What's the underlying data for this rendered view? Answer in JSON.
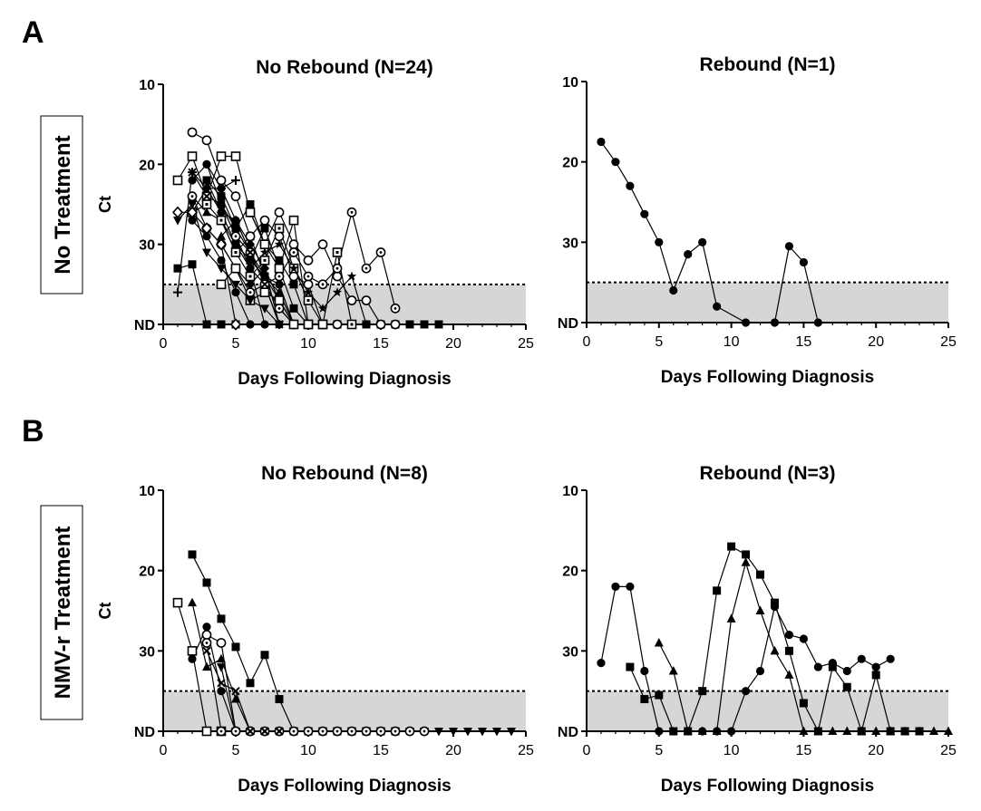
{
  "figure": {
    "panel_labels": [
      "A",
      "B"
    ],
    "row_labels": [
      "No Treatment",
      "NMV-r Treatment"
    ],
    "detection_threshold_ct": 35
  },
  "chart_data": [
    {
      "type": "line",
      "panel": "A-left",
      "title": "No Rebound (N=24)",
      "xlabel": "Days Following Diagnosis",
      "ylabel": "Ct",
      "xlim": [
        0,
        25
      ],
      "ylim_inverted": [
        10,
        40
      ],
      "xticks": [
        "0",
        "5",
        "10",
        "15",
        "20",
        "25"
      ],
      "yticks": [
        "10",
        "20",
        "30",
        "ND"
      ],
      "series": [
        {
          "marker": "filled-circle",
          "x": [
            2,
            3,
            4,
            5,
            6,
            7,
            8
          ],
          "y": [
            22,
            20,
            25,
            29,
            33,
            35,
            40
          ]
        },
        {
          "marker": "filled-circle",
          "x": [
            3,
            4,
            5,
            6,
            7
          ],
          "y": [
            22,
            26,
            30,
            33,
            40
          ]
        },
        {
          "marker": "filled-circle",
          "x": [
            3,
            4,
            5,
            6,
            7,
            8,
            9,
            10
          ],
          "y": [
            20,
            23,
            27,
            31,
            34,
            35,
            40,
            40
          ]
        },
        {
          "marker": "filled-circle",
          "x": [
            2,
            3,
            4,
            5,
            6
          ],
          "y": [
            27,
            29,
            32,
            36,
            40
          ]
        },
        {
          "marker": "filled-square",
          "x": [
            1,
            2,
            3,
            4,
            5
          ],
          "y": [
            33,
            32.5,
            40,
            40,
            40
          ]
        },
        {
          "marker": "filled-square",
          "x": [
            3,
            4,
            5,
            6,
            7,
            8,
            9,
            10,
            11
          ],
          "y": [
            22,
            24,
            28,
            25,
            30,
            32,
            35,
            40,
            40
          ]
        },
        {
          "marker": "filled-square",
          "x": [
            4,
            5,
            6,
            7,
            8,
            9,
            10,
            11,
            12,
            13,
            14,
            15,
            16,
            17,
            18,
            19
          ],
          "y": [
            27,
            31,
            29,
            34,
            37,
            40,
            40,
            40,
            40,
            40,
            40,
            40,
            40,
            40,
            40,
            40
          ]
        },
        {
          "marker": "filled-square",
          "x": [
            5,
            6,
            7,
            8,
            9,
            10,
            11,
            12
          ],
          "y": [
            30,
            32,
            28,
            33,
            38,
            40,
            40,
            40
          ]
        },
        {
          "marker": "filled-triangle",
          "x": [
            2,
            3,
            4,
            5,
            6,
            7,
            8,
            9,
            10
          ],
          "y": [
            24,
            26,
            27,
            30,
            32,
            34,
            36,
            40,
            40
          ]
        },
        {
          "marker": "filled-triangle",
          "x": [
            4,
            5,
            6,
            7,
            8,
            9
          ],
          "y": [
            29,
            27,
            31,
            35,
            38,
            40
          ]
        },
        {
          "marker": "filled-diamond",
          "x": [
            2,
            3,
            4,
            5,
            6,
            7,
            8
          ],
          "y": [
            26,
            23,
            26,
            27,
            30,
            33,
            40
          ]
        },
        {
          "marker": "filled-diamond",
          "x": [
            4,
            5,
            6,
            7,
            8,
            9
          ],
          "y": [
            30,
            33,
            35,
            33,
            37,
            40
          ]
        },
        {
          "marker": "open-circle",
          "x": [
            2,
            3,
            4,
            5,
            6,
            7,
            8,
            9,
            10,
            11,
            12
          ],
          "y": [
            16,
            17,
            22,
            24,
            29,
            27,
            29,
            34,
            35,
            40,
            40
          ]
        },
        {
          "marker": "open-circle",
          "x": [
            6,
            7,
            8,
            9,
            10,
            11,
            12,
            13,
            14,
            15,
            16
          ],
          "y": [
            26,
            30,
            26,
            30,
            32,
            30,
            34,
            37,
            37,
            40,
            40
          ]
        },
        {
          "marker": "dotted-circle",
          "x": [
            2,
            3,
            4,
            5,
            6,
            7,
            8,
            9
          ],
          "y": [
            24,
            28,
            30,
            33,
            36,
            35,
            38,
            40
          ]
        },
        {
          "marker": "dotted-circle",
          "x": [
            5,
            6,
            7,
            8,
            9,
            10,
            11,
            12,
            13,
            14,
            15,
            16
          ],
          "y": [
            29,
            31,
            35,
            34,
            31,
            34,
            35,
            33,
            26,
            33,
            31,
            38
          ]
        },
        {
          "marker": "open-square",
          "x": [
            1,
            2,
            3,
            4,
            5,
            6,
            7,
            8,
            9,
            10
          ],
          "y": [
            22,
            19,
            24,
            19,
            19,
            26,
            30,
            33,
            27,
            40
          ]
        },
        {
          "marker": "dotted-square",
          "x": [
            2,
            3,
            4,
            5,
            6,
            7,
            8,
            9,
            10,
            11,
            12,
            13
          ],
          "y": [
            26,
            25,
            27,
            31,
            34,
            32,
            28,
            33,
            37,
            40,
            31,
            40
          ]
        },
        {
          "marker": "open-square",
          "x": [
            4,
            5,
            6,
            7,
            8,
            9,
            10,
            11
          ],
          "y": [
            35,
            33,
            37,
            36,
            37,
            40,
            40,
            40
          ]
        },
        {
          "marker": "open-diamond",
          "x": [
            1,
            2,
            3,
            4,
            5
          ],
          "y": [
            26,
            26,
            28,
            30,
            40
          ]
        },
        {
          "marker": "inverted-triangle",
          "x": [
            1,
            2,
            3,
            4,
            5,
            6,
            7,
            8
          ],
          "y": [
            27,
            25,
            31,
            33,
            35,
            37,
            38,
            40
          ]
        },
        {
          "marker": "star",
          "x": [
            6,
            7,
            8,
            9,
            10,
            11,
            12,
            13,
            14
          ],
          "y": [
            33,
            31,
            30,
            33,
            36,
            38,
            36,
            34,
            40
          ]
        },
        {
          "marker": "plus",
          "x": [
            1,
            2,
            3,
            4,
            5
          ],
          "y": [
            36,
            21,
            23,
            23,
            22
          ]
        },
        {
          "marker": "x",
          "x": [
            2,
            3,
            4,
            5,
            6,
            7,
            8
          ],
          "y": [
            21,
            24,
            25,
            28,
            31,
            35,
            40
          ]
        }
      ]
    },
    {
      "type": "line",
      "panel": "A-right",
      "title": "Rebound (N=1)",
      "xlabel": "Days Following Diagnosis",
      "xlim": [
        0,
        25
      ],
      "ylim_inverted": [
        10,
        40
      ],
      "xticks": [
        "0",
        "5",
        "10",
        "15",
        "20",
        "25"
      ],
      "yticks": [
        "10",
        "20",
        "30",
        "ND"
      ],
      "series": [
        {
          "marker": "filled-circle",
          "x": [
            1,
            2,
            3,
            4,
            5,
            6,
            7,
            8,
            9,
            11,
            13,
            14,
            15,
            16
          ],
          "y": [
            17.5,
            20,
            23,
            26.5,
            30,
            36,
            31.5,
            30,
            38,
            40,
            40,
            30.5,
            32.5,
            40
          ]
        }
      ]
    },
    {
      "type": "line",
      "panel": "B-left",
      "title": "No Rebound (N=8)",
      "xlabel": "Days Following Diagnosis",
      "ylabel": "Ct",
      "xlim": [
        0,
        25
      ],
      "ylim_inverted": [
        10,
        40
      ],
      "xticks": [
        "0",
        "5",
        "10",
        "15",
        "20",
        "25"
      ],
      "yticks": [
        "10",
        "20",
        "30",
        "ND"
      ],
      "series": [
        {
          "marker": "filled-square",
          "x": [
            2,
            3,
            4,
            5,
            6,
            7,
            8,
            9,
            10,
            11,
            12,
            13,
            14,
            15,
            16
          ],
          "y": [
            18,
            21.5,
            26,
            29.5,
            34,
            30.5,
            36,
            40,
            40,
            40,
            40,
            40,
            40,
            40,
            40
          ]
        },
        {
          "marker": "filled-triangle",
          "x": [
            2,
            3,
            4,
            5,
            6,
            7
          ],
          "y": [
            24,
            32,
            31,
            36,
            40,
            40
          ]
        },
        {
          "marker": "filled-circle",
          "x": [
            2,
            3,
            4,
            5,
            6,
            7,
            8,
            9,
            10,
            11,
            12,
            13,
            14,
            15,
            16,
            17,
            18
          ],
          "y": [
            31,
            27,
            35,
            40,
            40,
            40,
            40,
            40,
            40,
            40,
            40,
            40,
            40,
            40,
            40,
            40,
            40
          ]
        },
        {
          "marker": "open-square",
          "x": [
            1,
            2,
            3,
            4
          ],
          "y": [
            24,
            30,
            40,
            40
          ]
        },
        {
          "marker": "open-circle",
          "x": [
            3,
            4,
            5,
            6
          ],
          "y": [
            28,
            29,
            40,
            40
          ]
        },
        {
          "marker": "inverted-triangle",
          "x": [
            4,
            5,
            6,
            7,
            8,
            9,
            10,
            11,
            12,
            13,
            14,
            15,
            16,
            17,
            18,
            19,
            20,
            21,
            22,
            23,
            24
          ],
          "y": [
            32,
            40,
            40,
            40,
            40,
            40,
            40,
            40,
            40,
            40,
            40,
            40,
            40,
            40,
            40,
            40,
            40,
            40,
            40,
            40,
            40
          ]
        },
        {
          "marker": "dotted-circle",
          "x": [
            3,
            4,
            5,
            6,
            7,
            8,
            9,
            10,
            11,
            12,
            13,
            14,
            15,
            16,
            17,
            18
          ],
          "y": [
            29,
            40,
            40,
            40,
            40,
            40,
            40,
            40,
            40,
            40,
            40,
            40,
            40,
            40,
            40,
            40
          ]
        },
        {
          "marker": "x",
          "x": [
            3,
            4,
            5,
            6,
            7,
            8
          ],
          "y": [
            30,
            34,
            35,
            40,
            40,
            40
          ]
        }
      ]
    },
    {
      "type": "line",
      "panel": "B-right",
      "title": "Rebound (N=3)",
      "xlabel": "Days Following Diagnosis",
      "xlim": [
        0,
        25
      ],
      "ylim_inverted": [
        10,
        40
      ],
      "xticks": [
        "0",
        "5",
        "10",
        "15",
        "20",
        "25"
      ],
      "yticks": [
        "10",
        "20",
        "30",
        "ND"
      ],
      "series": [
        {
          "marker": "filled-circle",
          "x": [
            1,
            2,
            3,
            4,
            5,
            6,
            7,
            8,
            9,
            10,
            11,
            12,
            13,
            14,
            15,
            16,
            17,
            18,
            19,
            20,
            21
          ],
          "y": [
            31.5,
            22,
            22,
            32.5,
            40,
            40,
            40,
            40,
            40,
            40,
            35,
            32.5,
            24.5,
            28,
            28.5,
            32,
            31.5,
            32.5,
            31,
            32,
            31
          ]
        },
        {
          "marker": "filled-square",
          "x": [
            3,
            4,
            5,
            6,
            7,
            8,
            9,
            10,
            11,
            12,
            13,
            14,
            15,
            16,
            17,
            18,
            19,
            20,
            21,
            22,
            23
          ],
          "y": [
            32,
            36,
            35.5,
            40,
            40,
            35,
            22.5,
            17,
            18,
            20.5,
            24,
            30,
            36.5,
            40,
            32,
            34.5,
            40,
            33,
            40,
            40,
            40
          ]
        },
        {
          "marker": "filled-triangle",
          "x": [
            5,
            6,
            7,
            8,
            9,
            10,
            11,
            12,
            13,
            14,
            15,
            16,
            17,
            18,
            19,
            20,
            21,
            22,
            23,
            24,
            25
          ],
          "y": [
            29,
            32.5,
            40,
            40,
            40,
            26,
            19,
            25,
            30,
            33,
            40,
            40,
            40,
            40,
            40,
            40,
            40,
            40,
            40,
            40,
            40
          ]
        }
      ]
    }
  ]
}
